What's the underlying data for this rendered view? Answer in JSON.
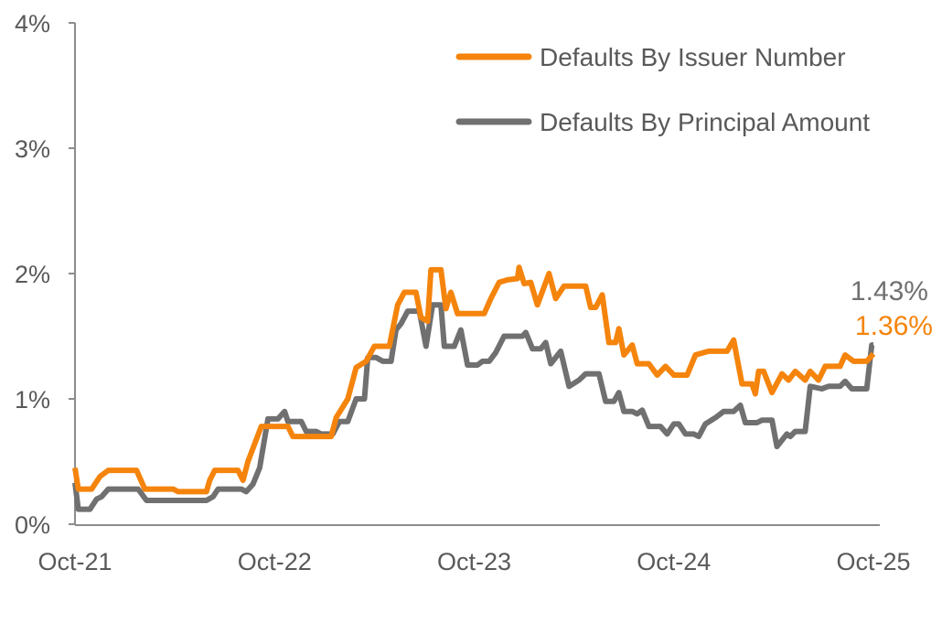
{
  "chart_data": {
    "type": "line",
    "title": "",
    "xlabel": "",
    "ylabel": "",
    "x_unit": "months since Oct-21",
    "xlim": [
      0,
      48
    ],
    "ylim": [
      0,
      4
    ],
    "x_ticks": [
      {
        "x": 0,
        "label": "Oct-21"
      },
      {
        "x": 12,
        "label": "Oct-22"
      },
      {
        "x": 24,
        "label": "Oct-23"
      },
      {
        "x": 36,
        "label": "Oct-24"
      },
      {
        "x": 48,
        "label": "Oct-25"
      }
    ],
    "y_ticks": [
      {
        "y": 0,
        "label": "0%"
      },
      {
        "y": 1,
        "label": "1%"
      },
      {
        "y": 2,
        "label": "2%"
      },
      {
        "y": 3,
        "label": "3%"
      },
      {
        "y": 4,
        "label": "4%"
      }
    ],
    "grid": false,
    "legend_position": "top-right",
    "series": [
      {
        "name": "Defaults By Issuer Number",
        "color": "#F5840C",
        "end_label": "1.36%",
        "points": [
          [
            0,
            0.45
          ],
          [
            0.2,
            0.28
          ],
          [
            1,
            0.28
          ],
          [
            1.5,
            0.38
          ],
          [
            2,
            0.43
          ],
          [
            3.7,
            0.43
          ],
          [
            4.2,
            0.28
          ],
          [
            5.9,
            0.28
          ],
          [
            6.2,
            0.26
          ],
          [
            7.9,
            0.26
          ],
          [
            8.1,
            0.35
          ],
          [
            8.4,
            0.43
          ],
          [
            9.8,
            0.43
          ],
          [
            10.1,
            0.35
          ],
          [
            10.4,
            0.5
          ],
          [
            11.2,
            0.78
          ],
          [
            12.8,
            0.78
          ],
          [
            13.1,
            0.7
          ],
          [
            15.4,
            0.7
          ],
          [
            15.7,
            0.85
          ],
          [
            16.4,
            1.0
          ],
          [
            16.9,
            1.25
          ],
          [
            17.5,
            1.3
          ],
          [
            18,
            1.42
          ],
          [
            18.9,
            1.42
          ],
          [
            19.4,
            1.75
          ],
          [
            19.8,
            1.85
          ],
          [
            20.5,
            1.85
          ],
          [
            20.8,
            1.65
          ],
          [
            21.2,
            1.62
          ],
          [
            21.4,
            2.03
          ],
          [
            22,
            2.03
          ],
          [
            22.3,
            1.72
          ],
          [
            22.6,
            1.85
          ],
          [
            23,
            1.68
          ],
          [
            24.6,
            1.68
          ],
          [
            25,
            1.8
          ],
          [
            25.5,
            1.93
          ],
          [
            26,
            1.95
          ],
          [
            26.6,
            1.96
          ],
          [
            26.7,
            2.05
          ],
          [
            27,
            1.92
          ],
          [
            27.4,
            1.93
          ],
          [
            27.8,
            1.75
          ],
          [
            28.5,
            2.0
          ],
          [
            28.9,
            1.8
          ],
          [
            29.4,
            1.9
          ],
          [
            30.7,
            1.9
          ],
          [
            31,
            1.73
          ],
          [
            31.3,
            1.73
          ],
          [
            31.7,
            1.83
          ],
          [
            32.1,
            1.45
          ],
          [
            32.5,
            1.45
          ],
          [
            32.7,
            1.56
          ],
          [
            33,
            1.35
          ],
          [
            33.5,
            1.43
          ],
          [
            33.8,
            1.28
          ],
          [
            34.5,
            1.28
          ],
          [
            35,
            1.19
          ],
          [
            35.5,
            1.26
          ],
          [
            36,
            1.19
          ],
          [
            36.8,
            1.19
          ],
          [
            37.3,
            1.35
          ],
          [
            38.1,
            1.38
          ],
          [
            39.2,
            1.38
          ],
          [
            39.6,
            1.47
          ],
          [
            40.1,
            1.12
          ],
          [
            40.7,
            1.12
          ],
          [
            40.9,
            1.04
          ],
          [
            41.1,
            1.22
          ],
          [
            41.4,
            1.22
          ],
          [
            41.9,
            1.05
          ],
          [
            42.5,
            1.2
          ],
          [
            42.9,
            1.15
          ],
          [
            43.3,
            1.22
          ],
          [
            43.9,
            1.15
          ],
          [
            44.2,
            1.22
          ],
          [
            44.7,
            1.15
          ],
          [
            45.1,
            1.26
          ],
          [
            46,
            1.26
          ],
          [
            46.3,
            1.35
          ],
          [
            46.8,
            1.3
          ],
          [
            47.6,
            1.3
          ],
          [
            48,
            1.36
          ]
        ]
      },
      {
        "name": "Defaults By Principal Amount",
        "color": "#707070",
        "end_label": "1.43%",
        "points": [
          [
            0,
            0.33
          ],
          [
            0.2,
            0.12
          ],
          [
            0.9,
            0.12
          ],
          [
            1.3,
            0.2
          ],
          [
            1.6,
            0.22
          ],
          [
            2,
            0.28
          ],
          [
            3.8,
            0.28
          ],
          [
            4.3,
            0.19
          ],
          [
            7.9,
            0.19
          ],
          [
            8.3,
            0.22
          ],
          [
            8.6,
            0.28
          ],
          [
            10,
            0.28
          ],
          [
            10.3,
            0.26
          ],
          [
            10.7,
            0.32
          ],
          [
            11.1,
            0.45
          ],
          [
            11.6,
            0.84
          ],
          [
            12.2,
            0.84
          ],
          [
            12.6,
            0.9
          ],
          [
            12.8,
            0.82
          ],
          [
            13.6,
            0.82
          ],
          [
            13.9,
            0.74
          ],
          [
            14.5,
            0.74
          ],
          [
            14.8,
            0.72
          ],
          [
            15.5,
            0.72
          ],
          [
            15.9,
            0.82
          ],
          [
            16.4,
            0.82
          ],
          [
            16.9,
            1.0
          ],
          [
            17.4,
            1.0
          ],
          [
            17.6,
            1.33
          ],
          [
            18.1,
            1.33
          ],
          [
            18.5,
            1.3
          ],
          [
            19,
            1.3
          ],
          [
            19.3,
            1.55
          ],
          [
            19.6,
            1.6
          ],
          [
            20,
            1.7
          ],
          [
            20.7,
            1.7
          ],
          [
            21.1,
            1.42
          ],
          [
            21.5,
            1.75
          ],
          [
            22,
            1.75
          ],
          [
            22.2,
            1.42
          ],
          [
            22.8,
            1.42
          ],
          [
            23.2,
            1.55
          ],
          [
            23.6,
            1.27
          ],
          [
            24.2,
            1.27
          ],
          [
            24.5,
            1.3
          ],
          [
            24.9,
            1.3
          ],
          [
            25.3,
            1.37
          ],
          [
            25.8,
            1.5
          ],
          [
            26.9,
            1.5
          ],
          [
            27.1,
            1.53
          ],
          [
            27.5,
            1.4
          ],
          [
            28,
            1.4
          ],
          [
            28.3,
            1.45
          ],
          [
            28.6,
            1.28
          ],
          [
            29.2,
            1.38
          ],
          [
            29.7,
            1.1
          ],
          [
            30.3,
            1.15
          ],
          [
            30.7,
            1.2
          ],
          [
            31.5,
            1.2
          ],
          [
            31.9,
            0.98
          ],
          [
            32.4,
            0.98
          ],
          [
            32.7,
            1.05
          ],
          [
            33,
            0.9
          ],
          [
            33.5,
            0.9
          ],
          [
            33.8,
            0.88
          ],
          [
            34.1,
            0.91
          ],
          [
            34.5,
            0.78
          ],
          [
            35.2,
            0.78
          ],
          [
            35.6,
            0.72
          ],
          [
            36,
            0.8
          ],
          [
            36.3,
            0.8
          ],
          [
            36.7,
            0.72
          ],
          [
            37.2,
            0.72
          ],
          [
            37.5,
            0.7
          ],
          [
            37.9,
            0.8
          ],
          [
            38.5,
            0.85
          ],
          [
            39,
            0.9
          ],
          [
            39.6,
            0.9
          ],
          [
            40.0,
            0.95
          ],
          [
            40.3,
            0.81
          ],
          [
            41.0,
            0.81
          ],
          [
            41.3,
            0.83
          ],
          [
            41.9,
            0.83
          ],
          [
            42.2,
            0.62
          ],
          [
            42.8,
            0.72
          ],
          [
            43.0,
            0.7
          ],
          [
            43.3,
            0.74
          ],
          [
            43.9,
            0.74
          ],
          [
            44.2,
            1.1
          ],
          [
            44.9,
            1.08
          ],
          [
            45.3,
            1.1
          ],
          [
            46.0,
            1.1
          ],
          [
            46.3,
            1.14
          ],
          [
            46.7,
            1.08
          ],
          [
            47.6,
            1.08
          ],
          [
            47.9,
            1.43
          ],
          [
            48,
            1.43
          ]
        ]
      }
    ]
  }
}
